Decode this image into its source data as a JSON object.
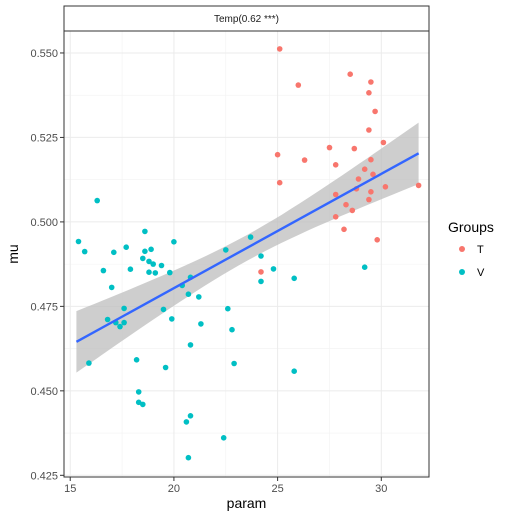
{
  "chart_data": {
    "type": "scatter",
    "facet_title": "Temp(0.62 ***)",
    "xlabel": "param",
    "ylabel": "mu",
    "xlim": [
      14.7,
      32.3
    ],
    "ylim": [
      0.4245,
      0.5565
    ],
    "x_ticks": [
      15,
      20,
      25,
      30
    ],
    "y_ticks": [
      0.425,
      0.45,
      0.475,
      0.5,
      0.525,
      0.55
    ],
    "x_tick_labels": [
      "15",
      "20",
      "25",
      "30"
    ],
    "y_tick_labels": [
      "0.425",
      "0.450",
      "0.475",
      "0.500",
      "0.525",
      "0.550"
    ],
    "grid": true,
    "legend": {
      "title": "Groups",
      "position": "right",
      "entries": [
        {
          "label": "T",
          "color": "#F8766D"
        },
        {
          "label": "V",
          "color": "#00BFC4"
        }
      ]
    },
    "trend": {
      "method": "linear fit with confidence band",
      "line_color": "#3366FF",
      "band_color": "#BDBDBD",
      "x": [
        15.3,
        31.8
      ],
      "y": [
        0.4645,
        0.5203
      ],
      "band_lower": [
        0.456,
        0.5108
      ],
      "band_upper": [
        0.4732,
        0.5298
      ]
    },
    "series": [
      {
        "name": "T",
        "color": "#F8766D",
        "points": [
          [
            25.1,
            0.5512
          ],
          [
            26.0,
            0.5405
          ],
          [
            28.5,
            0.5437
          ],
          [
            29.4,
            0.5382
          ],
          [
            29.5,
            0.5414
          ],
          [
            29.7,
            0.5327
          ],
          [
            29.4,
            0.5272
          ],
          [
            30.1,
            0.5235
          ],
          [
            28.7,
            0.5217
          ],
          [
            27.5,
            0.522
          ],
          [
            25.0,
            0.5199
          ],
          [
            26.3,
            0.5183
          ],
          [
            27.8,
            0.5169
          ],
          [
            29.5,
            0.5184
          ],
          [
            29.6,
            0.5141
          ],
          [
            29.2,
            0.5156
          ],
          [
            28.9,
            0.5127
          ],
          [
            28.8,
            0.5098
          ],
          [
            30.2,
            0.5104
          ],
          [
            29.5,
            0.5089
          ],
          [
            27.8,
            0.5081
          ],
          [
            25.1,
            0.5116
          ],
          [
            28.6,
            0.5034
          ],
          [
            28.3,
            0.5051
          ],
          [
            29.4,
            0.5066
          ],
          [
            27.8,
            0.5015
          ],
          [
            28.2,
            0.4978
          ],
          [
            29.8,
            0.4947
          ],
          [
            31.8,
            0.5108
          ],
          [
            24.2,
            0.4852
          ]
        ]
      },
      {
        "name": "V",
        "color": "#00BFC4",
        "points": [
          [
            16.3,
            0.5063
          ],
          [
            15.4,
            0.4942
          ],
          [
            15.7,
            0.4912
          ],
          [
            18.6,
            0.4972
          ],
          [
            20.0,
            0.4941
          ],
          [
            17.1,
            0.491
          ],
          [
            17.7,
            0.4925
          ],
          [
            18.6,
            0.4913
          ],
          [
            18.9,
            0.4919
          ],
          [
            18.5,
            0.4892
          ],
          [
            18.8,
            0.4883
          ],
          [
            19.0,
            0.4875
          ],
          [
            19.4,
            0.4871
          ],
          [
            16.6,
            0.4856
          ],
          [
            17.9,
            0.486
          ],
          [
            18.8,
            0.4851
          ],
          [
            19.1,
            0.4849
          ],
          [
            19.8,
            0.485
          ],
          [
            17.0,
            0.4806
          ],
          [
            20.4,
            0.4812
          ],
          [
            20.8,
            0.4836
          ],
          [
            21.2,
            0.4778
          ],
          [
            20.7,
            0.4786
          ],
          [
            17.6,
            0.4744
          ],
          [
            16.8,
            0.4711
          ],
          [
            17.2,
            0.4702
          ],
          [
            17.4,
            0.469
          ],
          [
            17.6,
            0.4702
          ],
          [
            19.5,
            0.4741
          ],
          [
            19.9,
            0.4713
          ],
          [
            21.3,
            0.4698
          ],
          [
            22.6,
            0.4743
          ],
          [
            22.8,
            0.4681
          ],
          [
            22.5,
            0.4917
          ],
          [
            23.7,
            0.4955
          ],
          [
            24.2,
            0.4899
          ],
          [
            24.2,
            0.4824
          ],
          [
            24.8,
            0.4861
          ],
          [
            25.8,
            0.4833
          ],
          [
            29.2,
            0.4866
          ],
          [
            20.8,
            0.4636
          ],
          [
            22.9,
            0.4581
          ],
          [
            15.9,
            0.4582
          ],
          [
            18.2,
            0.4592
          ],
          [
            19.6,
            0.4569
          ],
          [
            25.8,
            0.4558
          ],
          [
            18.3,
            0.4497
          ],
          [
            18.3,
            0.4466
          ],
          [
            18.5,
            0.446
          ],
          [
            20.6,
            0.4408
          ],
          [
            20.8,
            0.4426
          ],
          [
            22.4,
            0.4361
          ],
          [
            20.7,
            0.4302
          ]
        ]
      }
    ]
  }
}
